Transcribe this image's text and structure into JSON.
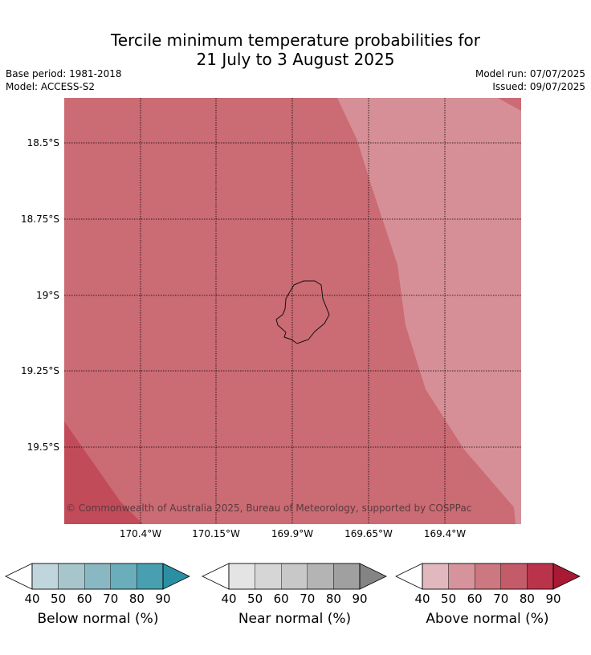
{
  "title": {
    "line1": "Tercile minimum temperature probabilities for",
    "line2": "21 July to 3 August 2025"
  },
  "meta": {
    "base_period": "Base period: 1981-2018",
    "model": "Model: ACCESS-S2",
    "model_run": "Model run: 07/07/2025",
    "issued": "Issued: 09/07/2025"
  },
  "map": {
    "lon_ticks": [
      "170.4°W",
      "170.15°W",
      "169.9°W",
      "169.65°W",
      "169.4°W"
    ],
    "lat_ticks": [
      "18.5°S",
      "18.75°S",
      "19°S",
      "19.25°S",
      "19.5°S"
    ],
    "copyright": "© Commonwealth of Australia 2025, Bureau of Meteorology, supported by COSPPac",
    "region_colors": {
      "above_50": "#d68f97",
      "above_60": "#cb6b74",
      "above_70": "#c24b5a"
    }
  },
  "colorbars": [
    {
      "label": "Below normal (%)",
      "ticks": [
        "40",
        "50",
        "60",
        "70",
        "80",
        "90"
      ],
      "colors": [
        "#c0d6dc",
        "#a6c6cc",
        "#8ab8c2",
        "#6aaebb",
        "#489fb0",
        "#2b8fa3"
      ]
    },
    {
      "label": "Near normal (%)",
      "ticks": [
        "40",
        "50",
        "60",
        "70",
        "80",
        "90"
      ],
      "colors": [
        "#e4e4e4",
        "#d6d6d6",
        "#c8c8c8",
        "#b4b4b4",
        "#a0a0a0",
        "#848484"
      ]
    },
    {
      "label": "Above normal (%)",
      "ticks": [
        "40",
        "50",
        "60",
        "70",
        "80",
        "90"
      ],
      "colors": [
        "#e0b8bd",
        "#d6939b",
        "#cd7780",
        "#c45b69",
        "#b9344b",
        "#a81a34"
      ]
    }
  ]
}
